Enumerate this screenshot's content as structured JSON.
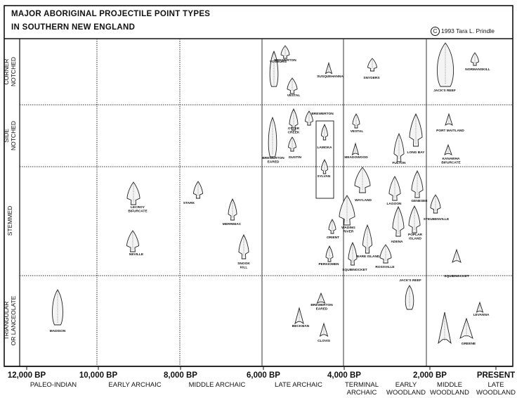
{
  "title_line1": "MAJOR ABORIGINAL PROJECTILE POINT TYPES",
  "title_line2": "IN SOUTHERN NEW ENGLAND",
  "copyright_symbol": "C",
  "copyright_text": "1993  Tara L. Prindle",
  "rows": [
    {
      "key": "corner",
      "lines": [
        "CORNER",
        "NOTCHED"
      ]
    },
    {
      "key": "side",
      "lines": [
        "SIDE",
        "NOTCHED"
      ]
    },
    {
      "key": "stemmed",
      "lines": [
        "STEMMED"
      ]
    },
    {
      "key": "triangular",
      "lines": [
        "TRIANGULAR",
        "OR LANCEOLATE"
      ]
    }
  ],
  "time_ticks": [
    "12,000 BP",
    "10,000 BP",
    "8,000 BP",
    "6,000 BP",
    "4,000 BP",
    "2,000 BP",
    "PRESENT"
  ],
  "periods": [
    {
      "lines": [
        "PALEO-INDIAN"
      ]
    },
    {
      "lines": [
        "EARLY ARCHAIC"
      ]
    },
    {
      "lines": [
        "MIDDLE ARCHAIC"
      ]
    },
    {
      "lines": [
        "LATE ARCHAIC"
      ]
    },
    {
      "lines": [
        "TERMINAL",
        "ARCHAIC"
      ]
    },
    {
      "lines": [
        "EARLY",
        "WOODLAND"
      ]
    },
    {
      "lines": [
        "MIDDLE",
        "WOODLAND"
      ]
    },
    {
      "lines": [
        "LATE",
        "WOODLAND"
      ]
    }
  ],
  "points": [
    {
      "lines": [
        "VOSBURG"
      ]
    },
    {
      "lines": [
        "BREWERTON"
      ]
    },
    {
      "lines": [
        "VESTAL"
      ]
    },
    {
      "lines": [
        "SUSQUEHANNA"
      ]
    },
    {
      "lines": [
        "SNYDERS"
      ]
    },
    {
      "lines": [
        "JACK'S REEF"
      ]
    },
    {
      "lines": [
        "NORMANSKILL"
      ]
    },
    {
      "lines": [
        "BREWERTON"
      ]
    },
    {
      "lines": [
        "OTTER",
        "CREEK"
      ]
    },
    {
      "lines": [
        "BREWERTON",
        "EARED"
      ]
    },
    {
      "lines": [
        "DUSTIN"
      ]
    },
    {
      "lines": [
        "LAMOKA"
      ]
    },
    {
      "lines": [
        "SYLVAN"
      ]
    },
    {
      "lines": [
        "VESTAL"
      ]
    },
    {
      "lines": [
        "MEADOWOOD"
      ]
    },
    {
      "lines": [
        "FULTON"
      ]
    },
    {
      "lines": [
        "LONG BAY"
      ]
    },
    {
      "lines": [
        "PORT MAITLAND"
      ]
    },
    {
      "lines": [
        "KANAWHA",
        "BIFURCATE"
      ]
    },
    {
      "lines": [
        "LECROY",
        "BIFURCATE"
      ]
    },
    {
      "lines": [
        "NEVILLE"
      ]
    },
    {
      "lines": [
        "STARK"
      ]
    },
    {
      "lines": [
        "MERRIMAC"
      ]
    },
    {
      "lines": [
        "SNOOK",
        "KILL"
      ]
    },
    {
      "lines": [
        "WAYLAND"
      ]
    },
    {
      "lines": [
        "LAGOON"
      ]
    },
    {
      "lines": [
        "GENESEE"
      ]
    },
    {
      "lines": [
        "WADING",
        "RIVER"
      ]
    },
    {
      "lines": [
        "ORIENT"
      ]
    },
    {
      "lines": [
        "ADENA"
      ]
    },
    {
      "lines": [
        "POPLAR",
        "ISLAND"
      ]
    },
    {
      "lines": [
        "BARE ISLAND"
      ]
    },
    {
      "lines": [
        "SQUIBNOCKET"
      ]
    },
    {
      "lines": [
        "PERKIOMEN"
      ]
    },
    {
      "lines": [
        "ROSSVILLE"
      ]
    },
    {
      "lines": [
        "STEUBENVILLE"
      ]
    },
    {
      "lines": [
        "JACK'S REEF"
      ]
    },
    {
      "lines": [
        "SQUIBNOCKET"
      ]
    },
    {
      "lines": [
        "BREWERTON",
        "EARED"
      ]
    },
    {
      "lines": [
        "BECKMAN"
      ]
    },
    {
      "lines": [
        "CLOVIS"
      ]
    },
    {
      "lines": [
        "MADISON"
      ]
    },
    {
      "lines": [
        "LEVANNA"
      ]
    },
    {
      "lines": [
        "GREENE"
      ]
    }
  ]
}
